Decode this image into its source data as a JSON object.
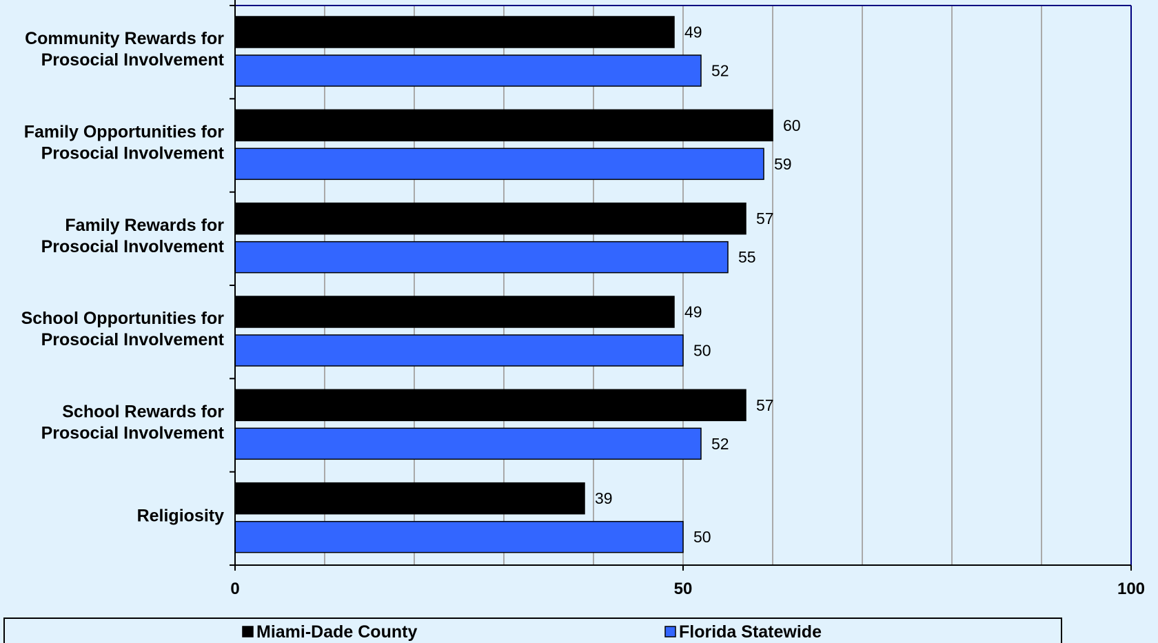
{
  "chart_data": {
    "type": "bar",
    "orientation": "horizontal",
    "categories": [
      [
        "Community Rewards for",
        "Prosocial Involvement"
      ],
      [
        "Family Opportunities for",
        "Prosocial Involvement"
      ],
      [
        "Family Rewards for",
        "Prosocial Involvement"
      ],
      [
        "School Opportunities for",
        "Prosocial Involvement"
      ],
      [
        "School Rewards for",
        "Prosocial Involvement"
      ],
      [
        "Religiosity"
      ]
    ],
    "series": [
      {
        "name": "Miami-Dade County",
        "values": [
          49,
          60,
          57,
          49,
          57,
          39
        ],
        "color": "#000000"
      },
      {
        "name": "Florida Statewide",
        "values": [
          52,
          59,
          55,
          50,
          52,
          50
        ],
        "color": "#3366ff"
      }
    ],
    "xlim": [
      0,
      100
    ],
    "x_ticks": [
      "0",
      "50",
      "100"
    ],
    "gridlines": "vertical, every 10",
    "legend_position": "bottom",
    "title": "",
    "xlabel": "",
    "ylabel": ""
  }
}
